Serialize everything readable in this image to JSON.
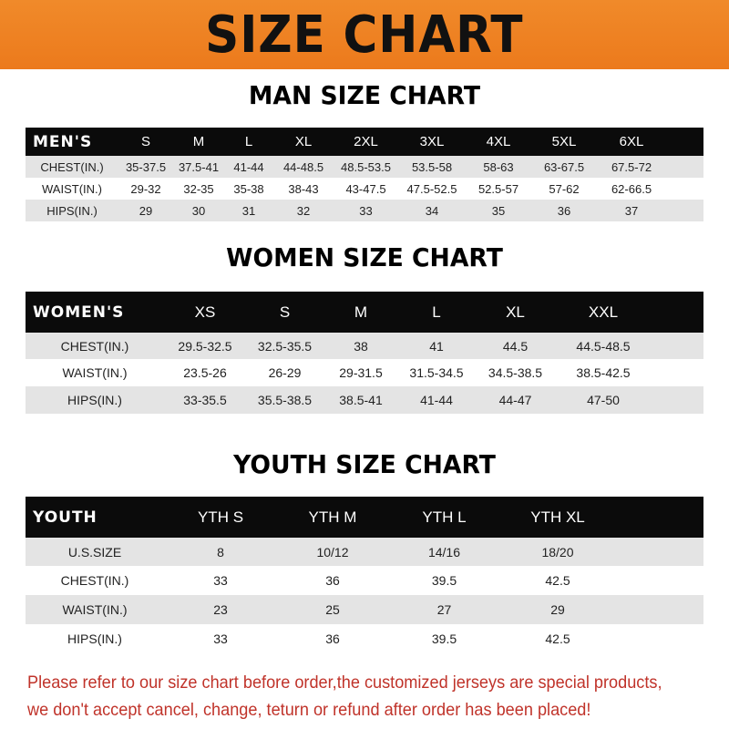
{
  "banner_title": "SIZE CHART",
  "colors": {
    "banner": "#ec7a1c",
    "header_row": "#0b0b0b",
    "stripe": "#e4e4e4",
    "note": "#c0332a"
  },
  "men": {
    "title": "MAN SIZE CHART",
    "header": [
      "MEN'S",
      "S",
      "M",
      "L",
      "XL",
      "2XL",
      "3XL",
      "4XL",
      "5XL",
      "6XL"
    ],
    "rows": [
      [
        "CHEST(IN.)",
        "35-37.5",
        "37.5-41",
        "41-44",
        "44-48.5",
        "48.5-53.5",
        "53.5-58",
        "58-63",
        "63-67.5",
        "67.5-72"
      ],
      [
        "WAIST(IN.)",
        "29-32",
        "32-35",
        "35-38",
        "38-43",
        "43-47.5",
        "47.5-52.5",
        "52.5-57",
        "57-62",
        "62-66.5"
      ],
      [
        "HIPS(IN.)",
        "29",
        "30",
        "31",
        "32",
        "33",
        "34",
        "35",
        "36",
        "37"
      ]
    ]
  },
  "women": {
    "title": "WOMEN SIZE CHART",
    "header": [
      "WOMEN'S",
      "XS",
      "S",
      "M",
      "L",
      "XL",
      "XXL"
    ],
    "rows": [
      [
        "CHEST(IN.)",
        "29.5-32.5",
        "32.5-35.5",
        "38",
        "41",
        "44.5",
        "44.5-48.5"
      ],
      [
        "WAIST(IN.)",
        "23.5-26",
        "26-29",
        "29-31.5",
        "31.5-34.5",
        "34.5-38.5",
        "38.5-42.5"
      ],
      [
        "HIPS(IN.)",
        "33-35.5",
        "35.5-38.5",
        "38.5-41",
        "41-44",
        "44-47",
        "47-50"
      ]
    ]
  },
  "youth": {
    "title": "YOUTH SIZE CHART",
    "header": [
      "YOUTH",
      "YTH S",
      "YTH M",
      "YTH L",
      "YTH XL"
    ],
    "rows": [
      [
        "U.S.SIZE",
        "8",
        "10/12",
        "14/16",
        "18/20"
      ],
      [
        "CHEST(IN.)",
        "33",
        "36",
        "39.5",
        "42.5"
      ],
      [
        "WAIST(IN.)",
        "23",
        "25",
        "27",
        "29"
      ],
      [
        "HIPS(IN.)",
        "33",
        "36",
        "39.5",
        "42.5"
      ]
    ]
  },
  "note": {
    "line1": "Please refer to our size chart before order,the customized jerseys are special products,",
    "line2": "we don't accept cancel, change, teturn or refund after order has been placed!"
  }
}
